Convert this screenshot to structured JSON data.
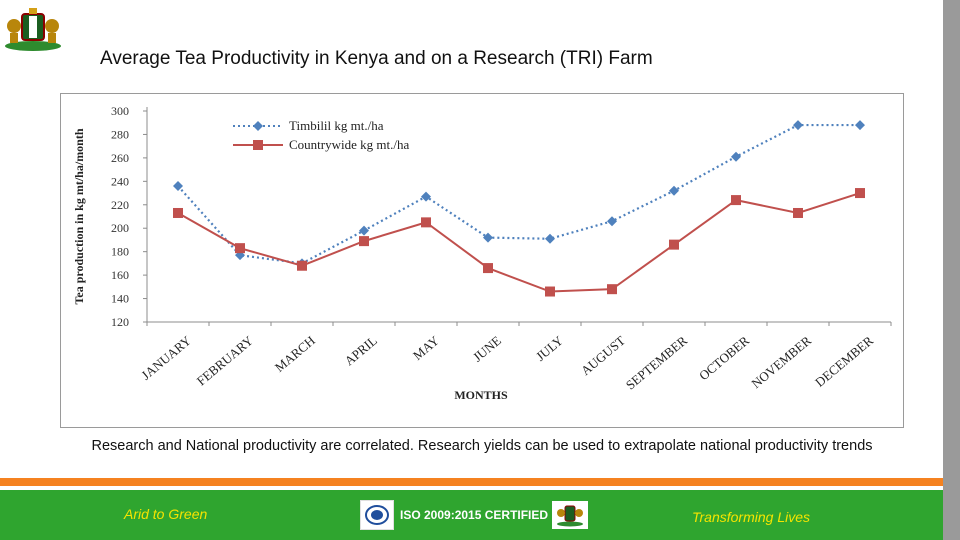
{
  "header": {
    "title": "Average Tea Productivity in Kenya and on a Research (TRI) Farm"
  },
  "chart_data": {
    "type": "line",
    "ylabel": "Tea production in kg mt/ha/month",
    "xlabel": "MONTHS",
    "ylim": [
      120,
      300
    ],
    "yticks": [
      120,
      140,
      160,
      180,
      200,
      220,
      240,
      260,
      280,
      300
    ],
    "categories": [
      "JANUARY",
      "FEBRUARY",
      "MARCH",
      "APRIL",
      "MAY",
      "JUNE",
      "JULY",
      "AUGUST",
      "SEPTEMBER",
      "OCTOBER",
      "NOVEMBER",
      "DECEMBER"
    ],
    "legend_position": "top-left",
    "series": [
      {
        "name": "Timbilil kg mt./ha",
        "color": "#4f81bd",
        "style": "dotted",
        "marker": "diamond",
        "values": [
          236,
          177,
          170,
          198,
          227,
          192,
          191,
          206,
          232,
          261,
          288,
          288
        ]
      },
      {
        "name": "Countrywide kg mt./ha",
        "color": "#c0504d",
        "style": "solid",
        "marker": "square",
        "values": [
          213,
          183,
          168,
          189,
          205,
          166,
          146,
          148,
          186,
          224,
          213,
          230
        ]
      }
    ]
  },
  "caption": {
    "text": "Research and National productivity are correlated. Research yields can be used to extrapolate national productivity trends"
  },
  "footer": {
    "left": "Arid to Green",
    "center": "ISO 2009:2015 CERTIFIED",
    "right": "Transforming Lives"
  }
}
